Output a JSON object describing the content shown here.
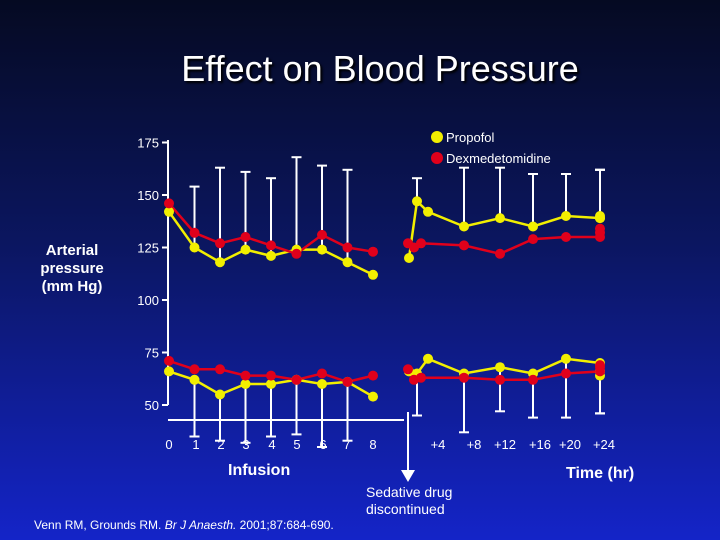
{
  "chart_data": {
    "type": "line",
    "title": "Effect on Blood Pressure",
    "ylabel_lines": [
      "Arterial",
      "pressure",
      "(mm Hg)"
    ],
    "xlabel": "Time (hr)",
    "infusion_label": "Infusion",
    "annotation_lines": [
      "Sedative drug",
      "discontinued"
    ],
    "ylim": [
      50,
      175
    ],
    "yticks": [
      50,
      75,
      100,
      125,
      150,
      175
    ],
    "x_labels": [
      "0",
      "1",
      "2",
      "3",
      "4",
      "5",
      "6",
      "7",
      "8",
      "+4",
      "+8",
      "+12",
      "+16",
      "+20",
      "+24"
    ],
    "infusion_x": [
      0,
      1,
      2,
      3,
      4,
      5,
      6,
      7,
      8
    ],
    "post_x": [
      "+0",
      "+0.5",
      "+1",
      "+2",
      "+4",
      "+8",
      "+12",
      "+16",
      "+20",
      "+24"
    ],
    "colors": {
      "propofol": "#f2ef00",
      "dexmedetomidine": "#e0001b",
      "axis": "#ffffff"
    },
    "legend_position": "top-right",
    "series": [
      {
        "name": "Propofol",
        "color": "#f2ef00",
        "systolic_infusion": [
          142,
          125,
          118,
          124,
          121,
          124,
          124,
          118,
          112
        ],
        "systolic_error": [
          null,
          154,
          163,
          161,
          158,
          168,
          164,
          162,
          null
        ],
        "systolic_post": [
          120,
          147,
          142,
          135,
          139,
          135,
          140,
          139,
          139,
          140
        ],
        "systolic_post_error": [
          null,
          158,
          null,
          163,
          163,
          160,
          160,
          162,
          162,
          162
        ],
        "diastolic_infusion": [
          66,
          62,
          55,
          60,
          60,
          62,
          60,
          61,
          54
        ],
        "diastolic_error": [
          null,
          35,
          33,
          32,
          35,
          36,
          30,
          33,
          null
        ],
        "diastolic_post": [
          66,
          65,
          72,
          65,
          68,
          65,
          72,
          70,
          64,
          66
        ],
        "diastolic_post_error": [
          null,
          45,
          null,
          37,
          47,
          44,
          44,
          46,
          46,
          46
        ]
      },
      {
        "name": "Dexmedetomidine",
        "color": "#e0001b",
        "systolic_infusion": [
          146,
          132,
          127,
          130,
          126,
          122,
          131,
          125,
          123
        ],
        "systolic_post": [
          127,
          125,
          127,
          126,
          122,
          129,
          130,
          130,
          132,
          134
        ],
        "diastolic_infusion": [
          71,
          67,
          67,
          64,
          64,
          62,
          65,
          61,
          64
        ],
        "diastolic_post": [
          67,
          62,
          63,
          63,
          62,
          62,
          65,
          66,
          68,
          69
        ]
      }
    ]
  },
  "citation": {
    "before": "Venn RM, Grounds RM.",
    "journal": "Br J Anaesth.",
    "after": "2001;87:684-690."
  }
}
